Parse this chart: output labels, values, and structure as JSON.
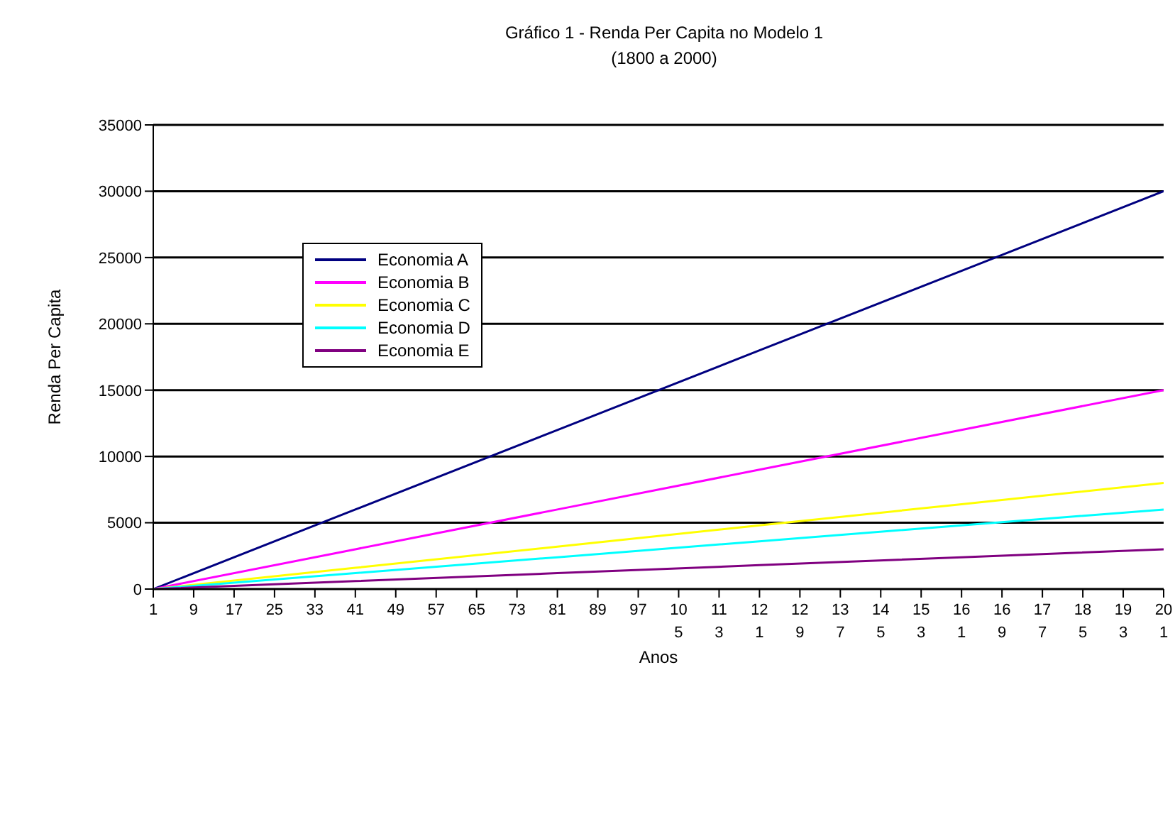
{
  "chart_data": {
    "type": "line",
    "title": "Gráfico 1 -  Renda Per Capita no Modelo 1\n(1800 a 2000)",
    "xlabel": "Anos",
    "ylabel": "Renda Per Capita",
    "xlim": [
      1,
      201
    ],
    "xticks": [
      1,
      9,
      17,
      25,
      33,
      41,
      49,
      57,
      65,
      73,
      81,
      89,
      97,
      105,
      113,
      121,
      129,
      137,
      145,
      153,
      161,
      169,
      177,
      185,
      193,
      201
    ],
    "ylim": [
      0,
      35000
    ],
    "yticks": [
      0,
      5000,
      10000,
      15000,
      20000,
      25000,
      30000,
      35000
    ],
    "grid": "y",
    "legend": "top left",
    "marker": "none",
    "line_style": "solid",
    "series": [
      {
        "name": "Economia A",
        "color": "#000080",
        "x": [
          1,
          41,
          81,
          121,
          161,
          201
        ],
        "values": [
          0,
          6000,
          12000,
          18000,
          24000,
          30000
        ]
      },
      {
        "name": "Economia B",
        "color": "#ff00ff",
        "x": [
          1,
          41,
          81,
          121,
          161,
          201
        ],
        "values": [
          0,
          3000,
          6000,
          9000,
          12000,
          15000
        ]
      },
      {
        "name": "Economia C",
        "color": "#ffff00",
        "x": [
          1,
          41,
          81,
          121,
          161,
          201
        ],
        "values": [
          0,
          1600,
          3200,
          4800,
          6400,
          8000
        ]
      },
      {
        "name": "Economia D",
        "color": "#00ffff",
        "x": [
          1,
          41,
          81,
          121,
          161,
          201
        ],
        "values": [
          0,
          1200,
          2400,
          3600,
          4800,
          6000
        ]
      },
      {
        "name": "Economia E",
        "color": "#800080",
        "x": [
          1,
          41,
          81,
          121,
          161,
          201
        ],
        "values": [
          0,
          600,
          1200,
          1800,
          2400,
          3000
        ]
      }
    ]
  }
}
